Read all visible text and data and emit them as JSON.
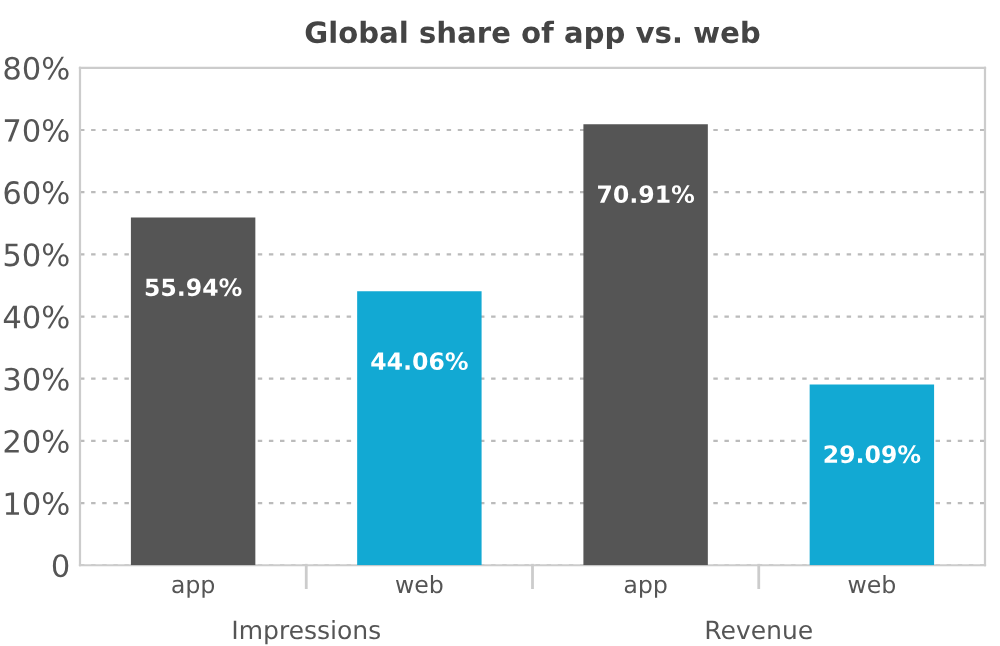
{
  "chart_data": {
    "type": "bar",
    "title": "Global share of app vs. web",
    "categories": [
      "app",
      "web",
      "app",
      "web"
    ],
    "values": [
      55.94,
      44.06,
      70.91,
      29.09
    ],
    "colors": [
      "#555555",
      "#12a9d3",
      "#555555",
      "#12a9d3"
    ],
    "value_labels": [
      "55.94%",
      "44.06%",
      "70.91%",
      "29.09%"
    ],
    "ylim": [
      0,
      80
    ],
    "yticks": [
      0,
      {
        "value": 10,
        "label": "10%"
      },
      {
        "value": 20,
        "label": "20%"
      },
      {
        "value": 30,
        "label": "30%"
      },
      {
        "value": 40,
        "label": "40%"
      },
      {
        "value": 50,
        "label": "50%"
      },
      {
        "value": 60,
        "label": "60%"
      },
      {
        "value": 70,
        "label": "70%"
      },
      {
        "value": 80,
        "label": "80%"
      }
    ],
    "annotations": [
      "Impressions",
      "Revenue"
    ],
    "grid": "y"
  }
}
